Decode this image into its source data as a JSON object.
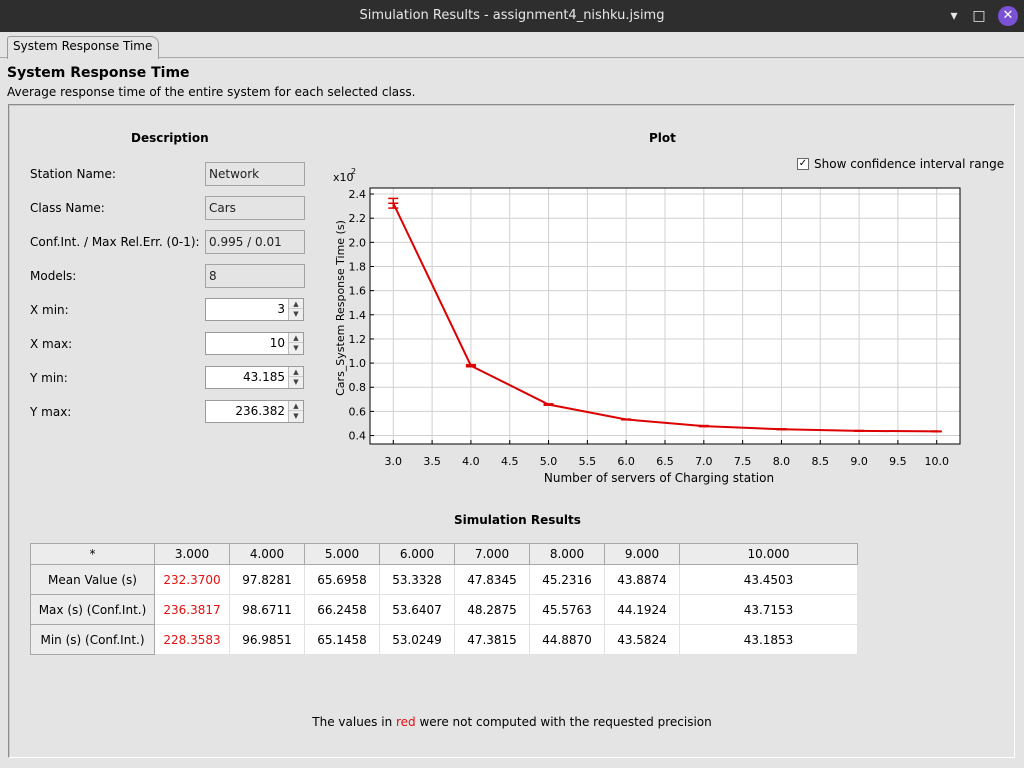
{
  "window": {
    "title": "Simulation Results - assignment4_nishku.jsimg",
    "minimize_label": "▾",
    "maximize_label": "□",
    "close_label": "✕"
  },
  "tab": {
    "label": "System Response Time"
  },
  "section": {
    "title": "System Response Time",
    "subtitle": "Average response time of the entire system for each selected class."
  },
  "description": {
    "heading": "Description",
    "station_label": "Station Name:",
    "station_value": "Network",
    "class_label": "Class Name:",
    "class_value": "Cars",
    "conf_label": "Conf.Int. / Max Rel.Err. (0-1):",
    "conf_value": "0.995 / 0.01",
    "models_label": "Models:",
    "models_value": "8",
    "xmin_label": "X min:",
    "xmin_value": "3",
    "xmax_label": "X max:",
    "xmax_value": "10",
    "ymin_label": "Y min:",
    "ymin_value": "43.185",
    "ymax_label": "Y max:",
    "ymax_value": "236.382"
  },
  "plot": {
    "heading": "Plot",
    "show_ci_label": "Show confidence interval range",
    "show_ci_checked": true
  },
  "chart_data": {
    "type": "line",
    "title": "",
    "xlabel": "Number of servers of Charging station",
    "ylabel": "Cars_System Response Time (s)",
    "y_multiplier_label": "x10",
    "y_multiplier_exp": "2",
    "x": [
      3,
      4,
      5,
      6,
      7,
      8,
      9,
      10
    ],
    "values": [
      2.3237,
      0.978281,
      0.656958,
      0.533328,
      0.478345,
      0.452316,
      0.438874,
      0.434503
    ],
    "upper": [
      2.363817,
      0.986711,
      0.662458,
      0.536407,
      0.482875,
      0.455763,
      0.441924,
      0.437153
    ],
    "lower": [
      2.283583,
      0.969851,
      0.651458,
      0.530249,
      0.473815,
      0.44887,
      0.435824,
      0.431853
    ],
    "xlim": [
      2.7,
      10.3
    ],
    "ylim": [
      0.33,
      2.45
    ],
    "xticks": [
      "3.0",
      "3.5",
      "4.0",
      "4.5",
      "5.0",
      "5.5",
      "6.0",
      "6.5",
      "7.0",
      "7.5",
      "8.0",
      "8.5",
      "9.0",
      "9.5",
      "10.0"
    ],
    "yticks": [
      "0.4",
      "0.6",
      "0.8",
      "1.0",
      "1.2",
      "1.4",
      "1.6",
      "1.8",
      "2.0",
      "2.2",
      "2.4"
    ],
    "grid": true,
    "line_color": "#dd0000"
  },
  "results": {
    "heading": "Simulation Results",
    "corner": "*",
    "columns": [
      "3.000",
      "4.000",
      "5.000",
      "6.000",
      "7.000",
      "8.000",
      "9.000",
      "10.000"
    ],
    "rows": [
      {
        "label": "Mean Value (s)",
        "cells": [
          "232.3700",
          "97.8281",
          "65.6958",
          "53.3328",
          "47.8345",
          "45.2316",
          "43.8874",
          "43.4503"
        ]
      },
      {
        "label": "Max (s) (Conf.Int.)",
        "cells": [
          "236.3817",
          "98.6711",
          "66.2458",
          "53.6407",
          "48.2875",
          "45.5763",
          "44.1924",
          "43.7153"
        ]
      },
      {
        "label": "Min (s) (Conf.Int.)",
        "cells": [
          "228.3583",
          "96.9851",
          "65.1458",
          "53.0249",
          "47.3815",
          "44.8870",
          "43.5824",
          "43.1853"
        ]
      }
    ],
    "red_columns": [
      0
    ]
  },
  "footer": {
    "note_before": "The values in ",
    "note_red": "red",
    "note_after": " were not computed with the requested precision"
  },
  "colors": {
    "red": "#e01010",
    "title_bar": "#2e2e2e",
    "close_button": "#7a52d6"
  }
}
